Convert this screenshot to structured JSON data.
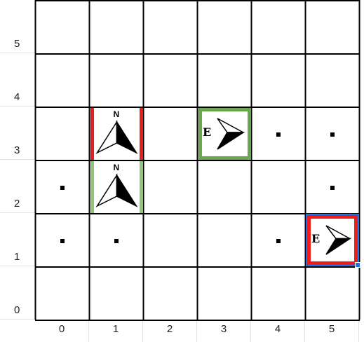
{
  "grid": {
    "row_labels": [
      "5",
      "4",
      "3",
      "2",
      "1",
      "0"
    ],
    "col_labels": [
      "0",
      "1",
      "2",
      "3",
      "4",
      "5"
    ]
  },
  "dots": [
    {
      "col": 4,
      "row": 3
    },
    {
      "col": 5,
      "row": 3
    },
    {
      "col": 0,
      "row": 2
    },
    {
      "col": 5,
      "row": 2
    },
    {
      "col": 0,
      "row": 1
    },
    {
      "col": 1,
      "row": 1
    },
    {
      "col": 4,
      "row": 1
    }
  ],
  "pieces": [
    {
      "id": "n1",
      "col": 1,
      "row": 3,
      "direction": "N",
      "label": "N",
      "border": "red-sides",
      "border_color": "#e32020"
    },
    {
      "id": "n2",
      "col": 1,
      "row": 2,
      "direction": "N",
      "label": "N",
      "border": "green-sides",
      "border_color": "#93c47d"
    },
    {
      "id": "e1",
      "col": 3,
      "row": 3,
      "direction": "E",
      "label": "E",
      "border": "green-box",
      "border_color": "#6aa84f"
    },
    {
      "id": "e2",
      "col": 5,
      "row": 1,
      "direction": "E",
      "label": "E",
      "border": "red-box",
      "border_color": "#ee1c1c",
      "selected": true,
      "selection_color": "#1a73e8"
    }
  ]
}
